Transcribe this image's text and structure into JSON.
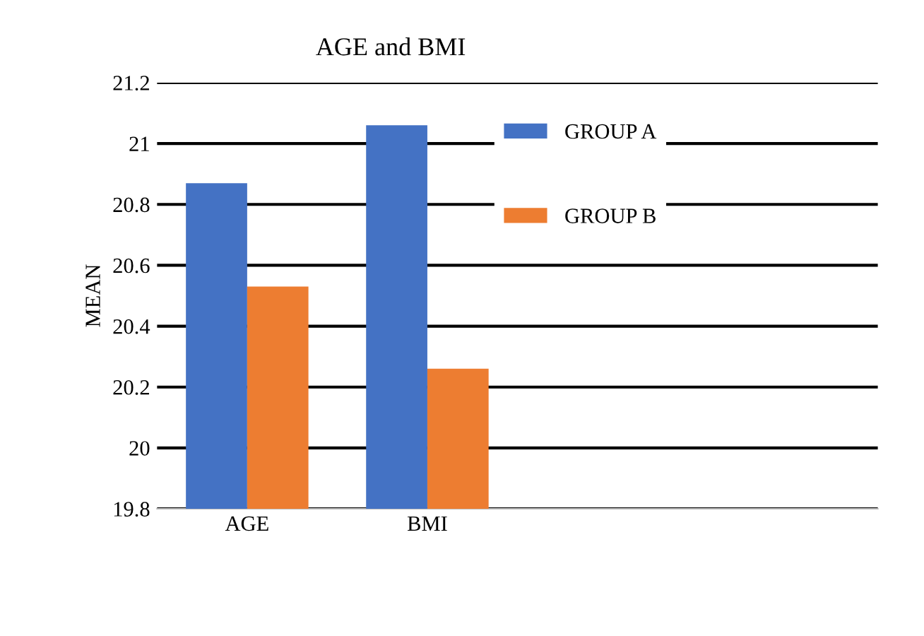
{
  "chart_data": {
    "type": "bar",
    "title": "AGE and BMI",
    "ylabel": "MEAN",
    "categories": [
      "AGE",
      "BMI",
      null,
      null
    ],
    "series": [
      {
        "name": "GROUP A",
        "color": "#4472c4",
        "values": [
          20.87,
          21.06,
          null,
          null
        ]
      },
      {
        "name": "GROUP B",
        "color": "#ed7d31",
        "values": [
          20.53,
          20.26,
          null,
          null
        ]
      }
    ],
    "ylim": [
      19.8,
      21.2
    ],
    "yticks": [
      19.8,
      20,
      20.2,
      20.4,
      20.6,
      20.8,
      21,
      21.2
    ],
    "grid": "y",
    "legend": "top right"
  }
}
